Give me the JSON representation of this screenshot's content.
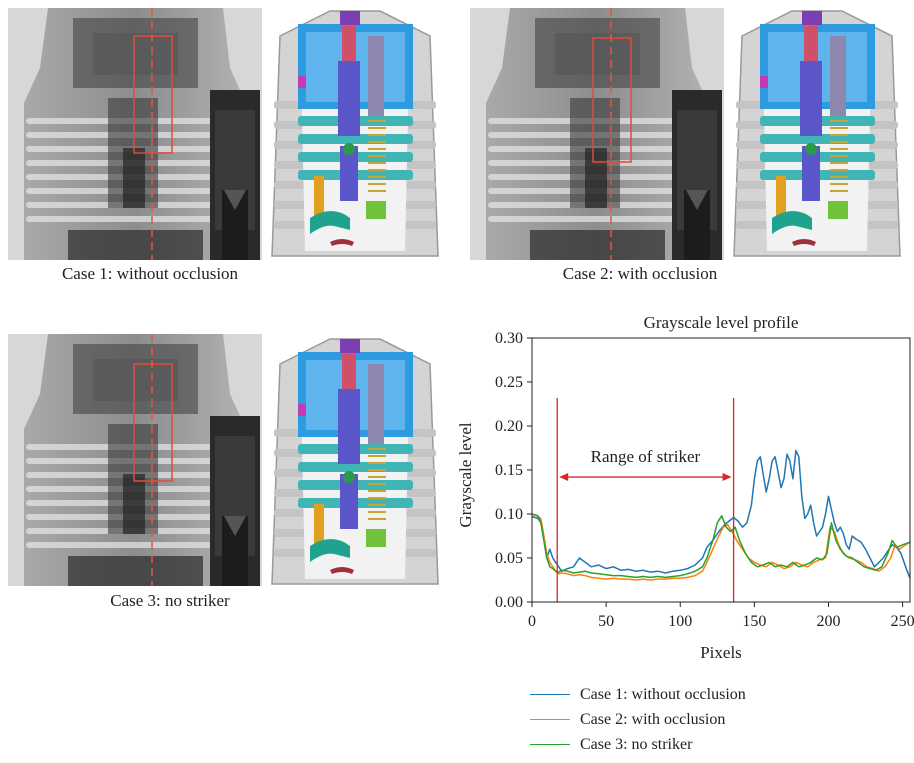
{
  "panels": [
    {
      "caption": "Case 1: without occlusion"
    },
    {
      "caption": "Case 2: with occlusion"
    },
    {
      "caption": "Case 3: no striker"
    }
  ],
  "colors": {
    "case1": "#1f77b4",
    "case2": "#ff7f0e",
    "case3": "#2ca02c",
    "annotation": "#d62728"
  },
  "chart_data": {
    "type": "line",
    "title": "Grayscale level profile",
    "xlabel": "Pixels",
    "ylabel": "Grayscale level",
    "xlim": [
      0,
      255
    ],
    "ylim": [
      0,
      0.3
    ],
    "xticks": [
      0,
      50,
      100,
      150,
      200,
      250
    ],
    "yticks": [
      "0.00",
      "0.05",
      "0.10",
      "0.15",
      "0.20",
      "0.25",
      "0.30"
    ],
    "grid": false,
    "annotation": {
      "text": "Range of striker",
      "x_start": 17,
      "x_end": 136,
      "y": 0.142
    },
    "series": [
      {
        "name": "Case 1: without occlusion",
        "x": [
          0,
          4,
          6,
          8,
          10,
          12,
          14,
          16,
          18,
          20,
          24,
          28,
          32,
          36,
          40,
          45,
          50,
          55,
          60,
          65,
          70,
          75,
          80,
          85,
          90,
          95,
          100,
          105,
          110,
          115,
          118,
          122,
          126,
          130,
          133,
          136,
          139,
          142,
          145,
          148,
          150,
          152,
          154,
          156,
          158,
          160,
          162,
          164,
          166,
          168,
          170,
          172,
          174,
          176,
          178,
          180,
          182,
          184,
          186,
          188,
          190,
          192,
          194,
          196,
          198,
          200,
          202,
          204,
          206,
          208,
          210,
          212,
          214,
          216,
          218,
          220,
          222,
          225,
          228,
          231,
          234,
          237,
          240,
          243,
          246,
          249,
          252,
          255
        ],
        "y": [
          0.097,
          0.095,
          0.09,
          0.07,
          0.05,
          0.06,
          0.05,
          0.045,
          0.04,
          0.035,
          0.038,
          0.04,
          0.05,
          0.045,
          0.04,
          0.042,
          0.038,
          0.04,
          0.036,
          0.037,
          0.035,
          0.036,
          0.034,
          0.035,
          0.033,
          0.035,
          0.036,
          0.038,
          0.042,
          0.05,
          0.062,
          0.07,
          0.08,
          0.088,
          0.092,
          0.096,
          0.092,
          0.085,
          0.09,
          0.11,
          0.14,
          0.16,
          0.165,
          0.145,
          0.125,
          0.14,
          0.16,
          0.165,
          0.148,
          0.13,
          0.14,
          0.168,
          0.16,
          0.14,
          0.172,
          0.165,
          0.12,
          0.095,
          0.1,
          0.11,
          0.09,
          0.075,
          0.08,
          0.085,
          0.1,
          0.12,
          0.105,
          0.09,
          0.08,
          0.085,
          0.078,
          0.065,
          0.06,
          0.075,
          0.072,
          0.07,
          0.068,
          0.06,
          0.05,
          0.04,
          0.045,
          0.05,
          0.058,
          0.065,
          0.062,
          0.055,
          0.04,
          0.027
        ]
      },
      {
        "name": "Case 2: with occlusion",
        "x": [
          0,
          4,
          6,
          8,
          10,
          12,
          14,
          16,
          18,
          20,
          24,
          28,
          32,
          36,
          40,
          45,
          50,
          55,
          60,
          65,
          70,
          75,
          80,
          85,
          90,
          95,
          100,
          105,
          110,
          115,
          118,
          122,
          126,
          129,
          132,
          135,
          138,
          142,
          146,
          150,
          154,
          158,
          162,
          166,
          170,
          174,
          178,
          182,
          186,
          190,
          194,
          198,
          201,
          204,
          207,
          210,
          214,
          218,
          222,
          226,
          230,
          234,
          238,
          242,
          245,
          248,
          252,
          255
        ],
        "y": [
          0.1,
          0.097,
          0.095,
          0.075,
          0.055,
          0.045,
          0.04,
          0.035,
          0.032,
          0.033,
          0.032,
          0.03,
          0.031,
          0.03,
          0.028,
          0.027,
          0.026,
          0.027,
          0.026,
          0.026,
          0.025,
          0.026,
          0.025,
          0.026,
          0.026,
          0.027,
          0.027,
          0.028,
          0.03,
          0.035,
          0.045,
          0.06,
          0.075,
          0.085,
          0.088,
          0.08,
          0.07,
          0.06,
          0.05,
          0.045,
          0.042,
          0.04,
          0.045,
          0.042,
          0.038,
          0.04,
          0.045,
          0.042,
          0.04,
          0.045,
          0.048,
          0.05,
          0.085,
          0.08,
          0.065,
          0.055,
          0.05,
          0.048,
          0.045,
          0.04,
          0.038,
          0.035,
          0.04,
          0.05,
          0.065,
          0.06,
          0.065,
          0.068
        ]
      },
      {
        "name": "Case 3: no striker",
        "x": [
          0,
          4,
          6,
          8,
          10,
          12,
          14,
          16,
          18,
          20,
          24,
          28,
          32,
          36,
          40,
          45,
          50,
          55,
          60,
          65,
          70,
          75,
          80,
          85,
          90,
          95,
          100,
          105,
          110,
          115,
          118,
          122,
          125,
          128,
          131,
          134,
          137,
          140,
          144,
          148,
          152,
          156,
          160,
          164,
          168,
          172,
          176,
          180,
          184,
          188,
          192,
          196,
          199,
          202,
          205,
          208,
          212,
          216,
          220,
          224,
          228,
          232,
          236,
          240,
          243,
          246,
          250,
          255
        ],
        "y": [
          0.1,
          0.098,
          0.09,
          0.07,
          0.05,
          0.04,
          0.038,
          0.035,
          0.034,
          0.036,
          0.035,
          0.033,
          0.034,
          0.035,
          0.033,
          0.032,
          0.031,
          0.03,
          0.03,
          0.029,
          0.028,
          0.029,
          0.028,
          0.029,
          0.028,
          0.029,
          0.03,
          0.032,
          0.035,
          0.04,
          0.05,
          0.07,
          0.09,
          0.098,
          0.085,
          0.08,
          0.085,
          0.07,
          0.055,
          0.045,
          0.04,
          0.042,
          0.045,
          0.04,
          0.042,
          0.04,
          0.045,
          0.04,
          0.042,
          0.045,
          0.05,
          0.048,
          0.055,
          0.09,
          0.07,
          0.06,
          0.052,
          0.05,
          0.045,
          0.04,
          0.038,
          0.036,
          0.04,
          0.055,
          0.07,
          0.062,
          0.065,
          0.068
        ]
      }
    ]
  }
}
